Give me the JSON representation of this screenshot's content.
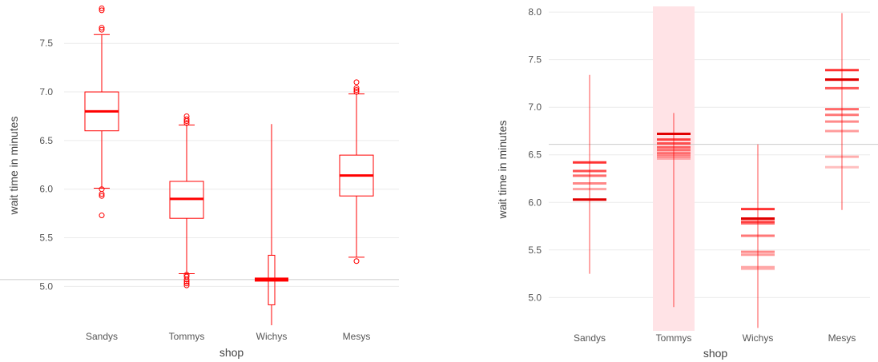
{
  "colors": {
    "accent": "#ff0000",
    "grid": "#ebebeb",
    "highlight": "#ffe3e6",
    "refline": "#cccccc"
  },
  "chart_data": [
    {
      "type": "box",
      "xlabel": "shop",
      "ylabel": "wait time in minutes",
      "categories": [
        "Sandys",
        "Tommys",
        "Wichys",
        "Mesys"
      ],
      "ylim": [
        4.6,
        7.88
      ],
      "yticks": [
        "5.0",
        "5.5",
        "6.0",
        "6.5",
        "7.0",
        "7.5"
      ],
      "reference_y": 5.07,
      "boxes": [
        {
          "q1": 6.6,
          "median": 6.8,
          "q3": 7.0,
          "whisker_low": 6.01,
          "whisker_high": 7.59,
          "outliers": [
            7.86,
            7.84,
            7.66,
            7.64,
            6.0,
            5.95,
            5.93,
            5.73
          ]
        },
        {
          "q1": 5.7,
          "median": 5.9,
          "q3": 6.08,
          "whisker_low": 5.13,
          "whisker_high": 6.66,
          "outliers": [
            6.75,
            6.72,
            6.7,
            6.68,
            5.12,
            5.1,
            5.07,
            5.05,
            5.03,
            5.01
          ]
        },
        {
          "q1": 4.81,
          "median": 5.07,
          "q3": 5.32,
          "whisker_low": 4.6,
          "whisker_high": 6.67,
          "outliers": []
        },
        {
          "q1": 5.93,
          "median": 6.14,
          "q3": 6.35,
          "whisker_low": 5.3,
          "whisker_high": 6.98,
          "outliers": [
            7.1,
            7.04,
            7.02,
            7.0,
            5.26
          ]
        }
      ]
    },
    {
      "type": "interval",
      "xlabel": "shop",
      "ylabel": "wait time in minutes",
      "categories": [
        "Sandys",
        "Tommys",
        "Wichys",
        "Mesys"
      ],
      "ylim": [
        4.65,
        8.06
      ],
      "yticks": [
        "5.0",
        "5.5",
        "6.0",
        "6.5",
        "7.0",
        "7.5",
        "8.0"
      ],
      "reference_y": 6.61,
      "highlight_category": "Tommys",
      "series": [
        {
          "low": 5.25,
          "high": 7.34,
          "median": 6.03,
          "levels": [
            6.03,
            6.14,
            6.2,
            6.28,
            6.33,
            6.42
          ]
        },
        {
          "low": 4.9,
          "high": 6.94,
          "median": 6.72,
          "levels": [
            6.46,
            6.48,
            6.5,
            6.52,
            6.55,
            6.58,
            6.62,
            6.66,
            6.72
          ]
        },
        {
          "low": 4.68,
          "high": 6.61,
          "median": 5.83,
          "levels": [
            5.3,
            5.32,
            5.45,
            5.48,
            5.65,
            5.78,
            5.8,
            5.83,
            5.93
          ]
        },
        {
          "low": 5.92,
          "high": 7.99,
          "median": 7.29,
          "levels": [
            6.37,
            6.48,
            6.75,
            6.85,
            6.92,
            6.98,
            7.2,
            7.29,
            7.39
          ]
        }
      ]
    }
  ]
}
